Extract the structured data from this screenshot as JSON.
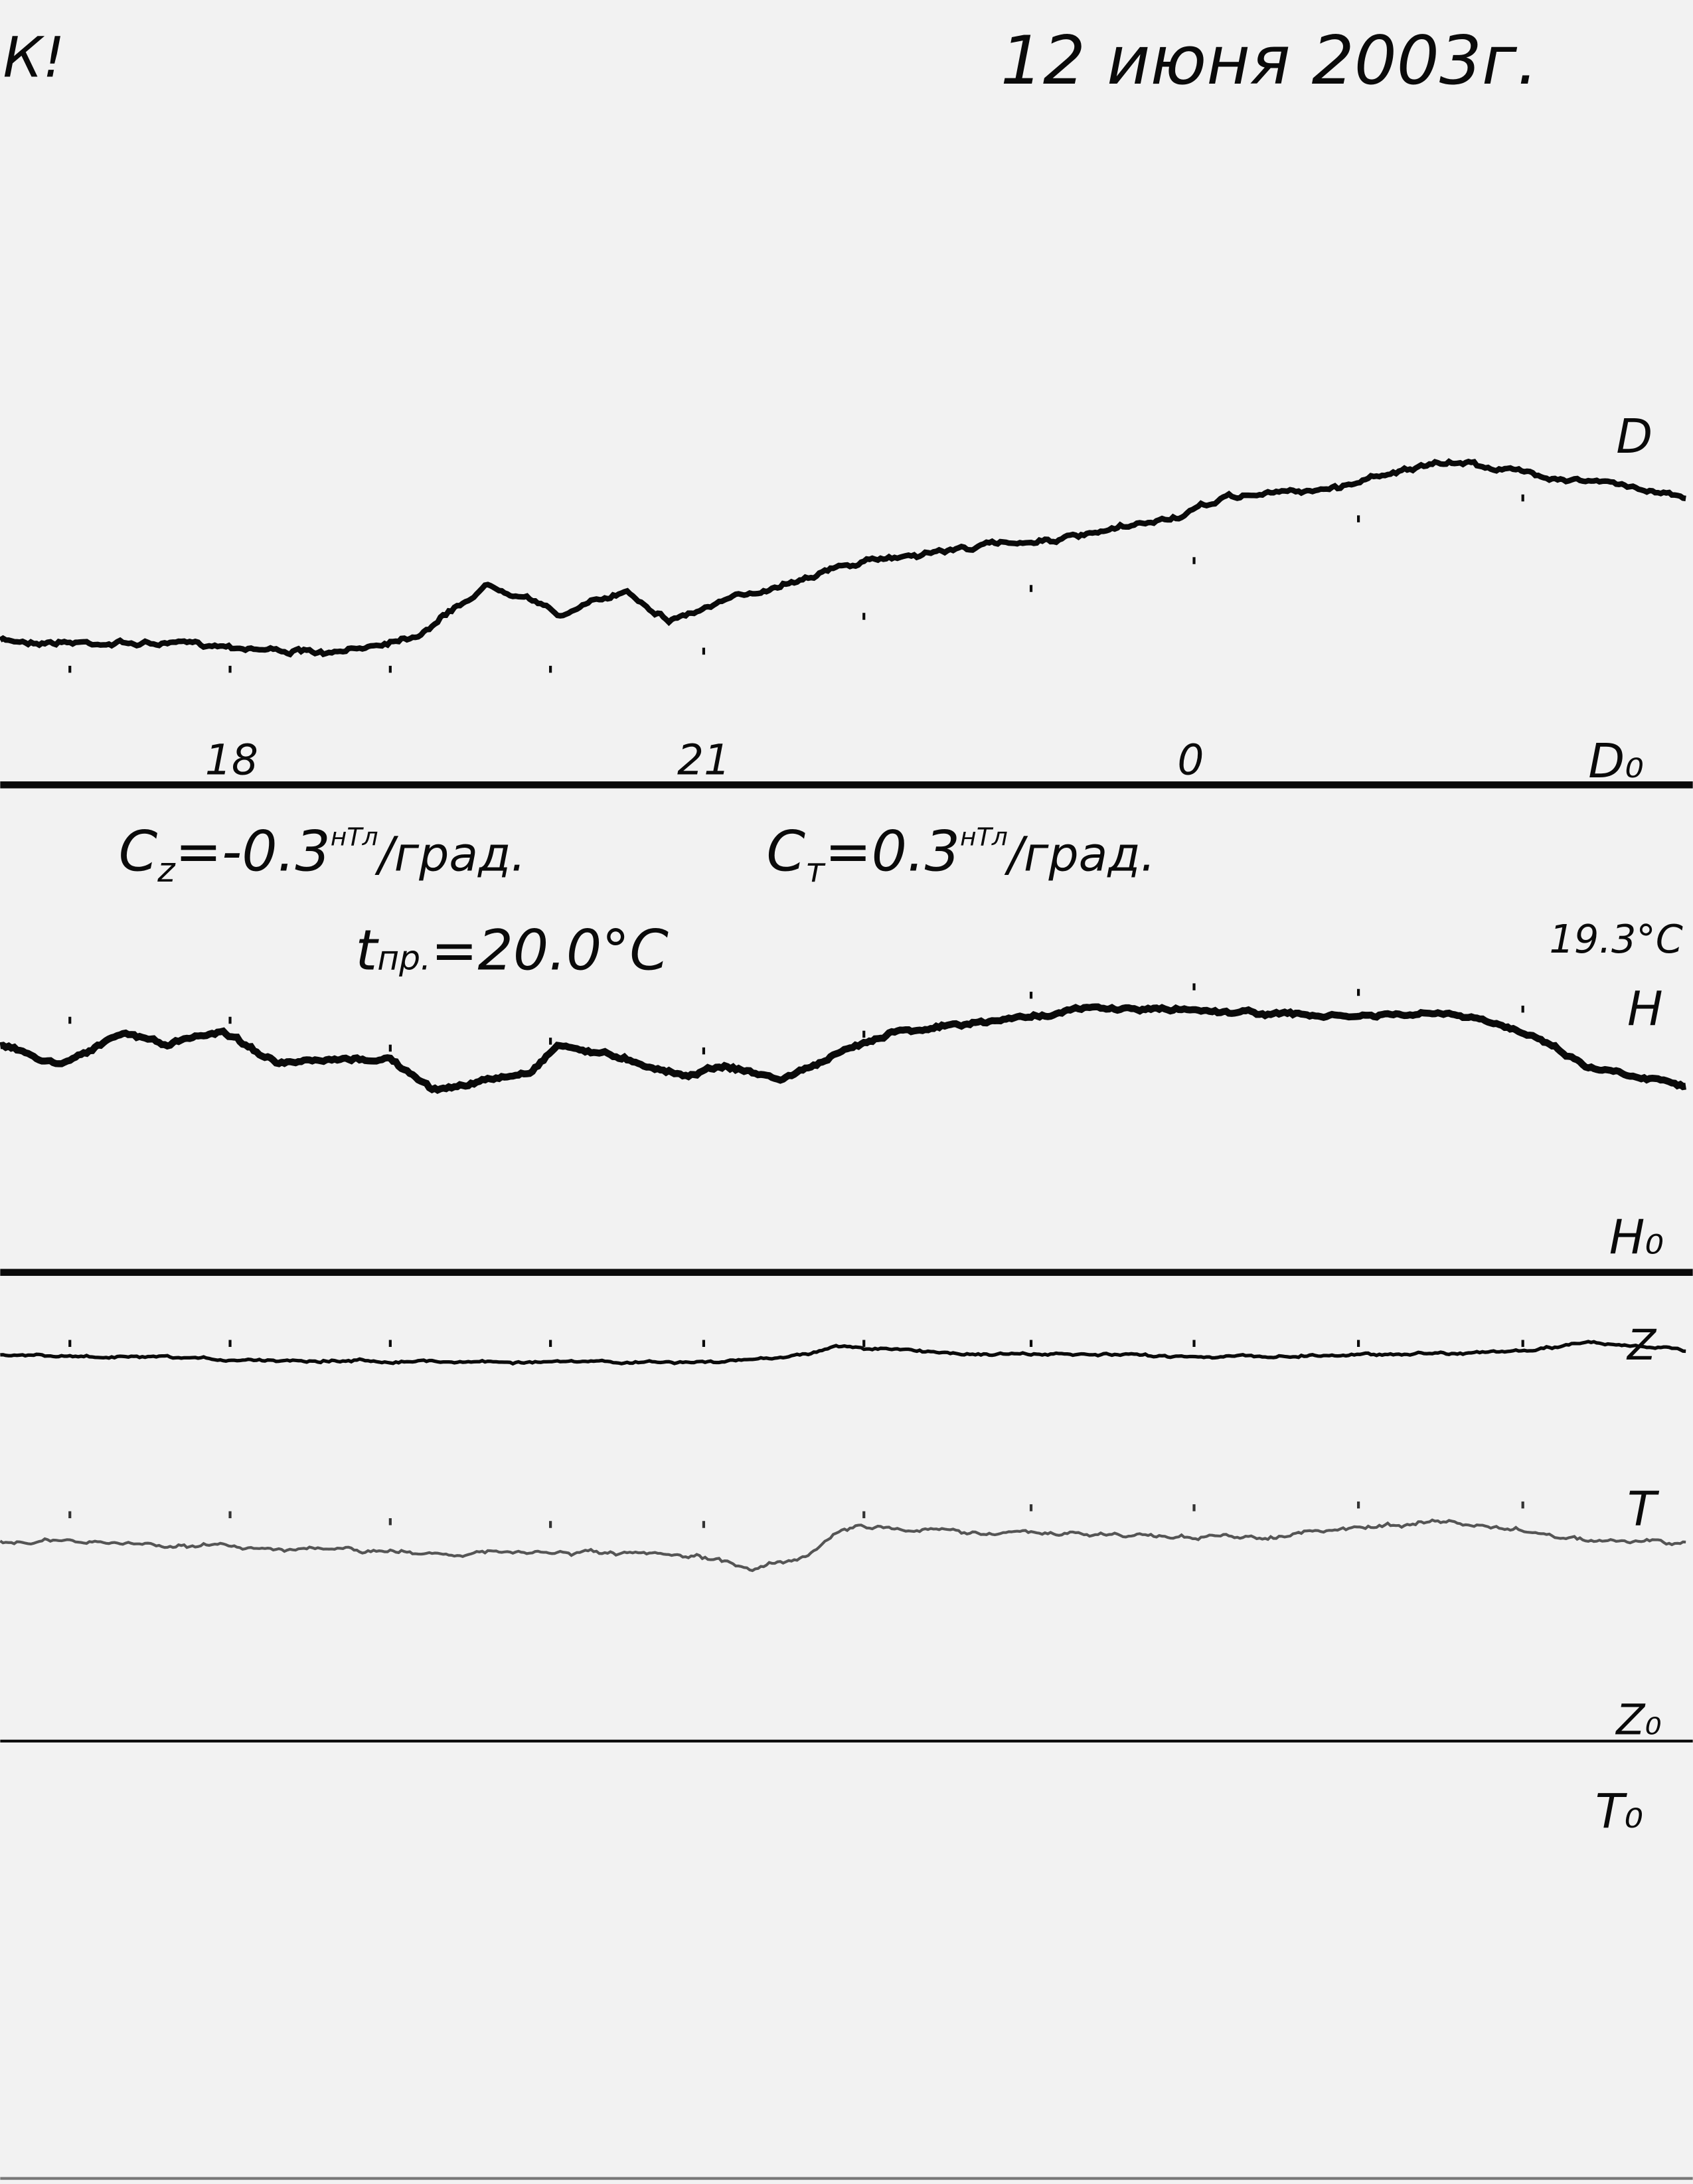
{
  "header": {
    "mark": "К!",
    "date": "12 июня 2003г."
  },
  "channels": {
    "d": "D",
    "d0": "D₀",
    "h": "H",
    "h0": "H₀",
    "z": "Z",
    "t": "T",
    "z0": "Z₀",
    "t0": "T₀"
  },
  "time_labels": [
    "18",
    "21",
    "0"
  ],
  "annotations": {
    "cz_label": "C",
    "cz_sub": "z",
    "cz_value": "=-0.3",
    "cz_unit_sup": "нТл",
    "cz_unit": "/град.",
    "ct_label": "C",
    "ct_sub": "т",
    "ct_value": "=0.3",
    "ct_unit_sup": "нТл",
    "ct_unit": "/град.",
    "t_label": "t",
    "t_sub": "пр.",
    "t_value": "=20.0°C",
    "temp_end": "19.3°C"
  },
  "colors": {
    "paper": "#f2f2f2",
    "ink": "#0a0a0a",
    "trace_t": "#555555"
  }
}
